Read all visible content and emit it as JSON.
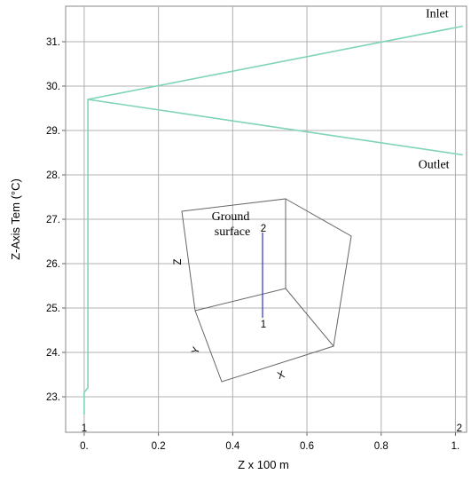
{
  "chart_data": {
    "type": "line",
    "title": "",
    "xlabel": "Z x 100 m",
    "ylabel": "Z-Axis Tem (°C)",
    "xlim": [
      -0.05,
      1.03
    ],
    "ylim": [
      22.2,
      31.8
    ],
    "x_ticks": [
      0.0,
      0.2,
      0.4,
      0.6,
      0.8,
      1.0
    ],
    "x_tick_labels": [
      "0.",
      "0.2",
      "0.4",
      "0.6",
      "0.8",
      "1."
    ],
    "y_ticks": [
      23,
      24,
      25,
      26,
      27,
      28,
      29,
      30,
      31
    ],
    "y_tick_labels": [
      "23.",
      "24.",
      "25.",
      "26.",
      "27.",
      "28.",
      "29.",
      "30.",
      "31."
    ],
    "grid": true,
    "line_color": "#7fd4b8",
    "series": [
      {
        "name": "",
        "x": [
          0.0,
          0.0,
          0.01,
          0.01,
          1.02
        ],
        "y": [
          22.6,
          23.1,
          23.2,
          29.7,
          31.35
        ]
      },
      {
        "name": "",
        "x": [
          0.01,
          1.02
        ],
        "y": [
          29.7,
          28.45
        ]
      }
    ],
    "annotations": [
      {
        "text": "Inlet",
        "x": 0.92,
        "y": 31.55
      },
      {
        "text": "Outlet",
        "x": 0.9,
        "y": 28.15
      }
    ],
    "corner_marks": [
      {
        "text": "1",
        "x": 0.0,
        "color": "#cc0000"
      },
      {
        "text": "2",
        "x": 1.02,
        "color": "#cc0000"
      }
    ]
  },
  "inset": {
    "surface_label_line1": "Ground",
    "surface_label_line2": "surface",
    "axis_z": "Z",
    "axis_y": "Y",
    "axis_x": "X",
    "point_top": "2",
    "point_bottom": "1",
    "box_color": "#666666",
    "line_color": "#3333cc",
    "point_color": "#cc0000"
  }
}
